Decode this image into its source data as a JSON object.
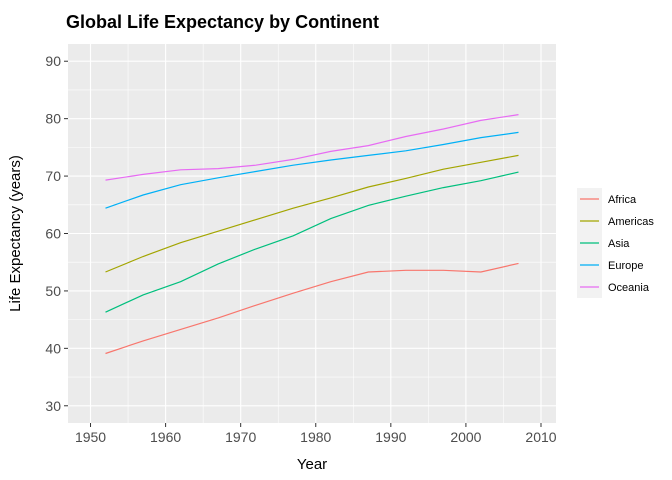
{
  "chart_data": {
    "type": "line",
    "title": "Global Life Expectancy by Continent",
    "xlabel": "Year",
    "ylabel": "Life Expectancy (years)",
    "xlim": [
      1947,
      2012
    ],
    "ylim": [
      27,
      93
    ],
    "xticks": [
      1950,
      1960,
      1970,
      1980,
      1990,
      2000,
      2010
    ],
    "yticks": [
      30,
      40,
      50,
      60,
      70,
      80,
      90
    ],
    "grid": true,
    "legend_position": "right",
    "x": [
      1952,
      1957,
      1962,
      1967,
      1972,
      1977,
      1982,
      1987,
      1992,
      1997,
      2002,
      2007
    ],
    "series": [
      {
        "name": "Africa",
        "color": "#F8766D",
        "values": [
          39.1,
          41.3,
          43.3,
          45.3,
          47.5,
          49.6,
          51.6,
          53.3,
          53.6,
          53.6,
          53.3,
          54.8
        ]
      },
      {
        "name": "Americas",
        "color": "#A3A500",
        "values": [
          53.3,
          56.0,
          58.4,
          60.4,
          62.4,
          64.4,
          66.2,
          68.1,
          69.6,
          71.2,
          72.4,
          73.6
        ]
      },
      {
        "name": "Asia",
        "color": "#00BF7D",
        "values": [
          46.3,
          49.3,
          51.6,
          54.7,
          57.3,
          59.6,
          62.6,
          64.9,
          66.5,
          68.0,
          69.2,
          70.7
        ]
      },
      {
        "name": "Europe",
        "color": "#00B0F6",
        "values": [
          64.4,
          66.7,
          68.5,
          69.7,
          70.8,
          71.9,
          72.8,
          73.6,
          74.4,
          75.5,
          76.7,
          77.6
        ]
      },
      {
        "name": "Oceania",
        "color": "#E76BF3",
        "values": [
          69.3,
          70.3,
          71.1,
          71.3,
          71.9,
          72.9,
          74.3,
          75.3,
          76.9,
          78.2,
          79.7,
          80.7
        ]
      }
    ]
  }
}
